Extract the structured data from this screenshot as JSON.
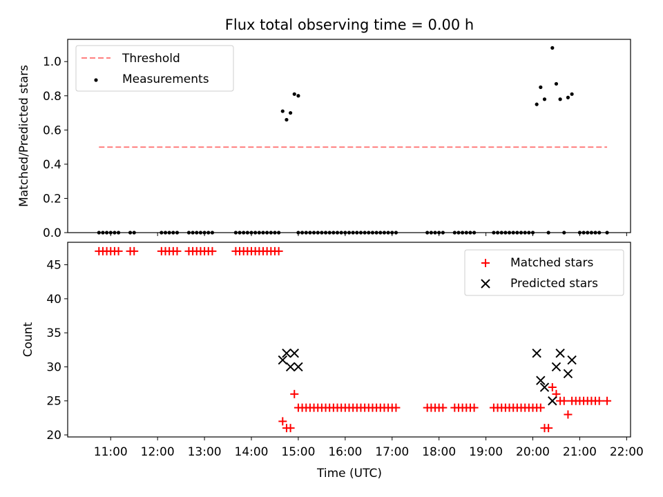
{
  "figure": {
    "title": "Flux total observing time = 0.00 h",
    "xlabel": "Time (UTC)"
  },
  "chart_data": [
    {
      "type": "scatter",
      "title": "Flux total observing time = 0.00 h",
      "ylabel": "Matched/Predicted stars",
      "ylim": [
        0,
        1.13
      ],
      "yticks": [
        0.0,
        0.2,
        0.4,
        0.6,
        0.8,
        1.0
      ],
      "legend": {
        "placement": "top-left",
        "entries": [
          "Threshold",
          "Measurements"
        ]
      },
      "threshold": {
        "name": "Threshold",
        "value": 0.5,
        "x_start": "10:45",
        "x_end": "21:35",
        "color": "#ff7f7f"
      },
      "series": [
        {
          "name": "Measurements",
          "color": "#000000",
          "points": [
            [
              "10:45",
              0
            ],
            [
              "10:50",
              0
            ],
            [
              "10:55",
              0
            ],
            [
              "11:00",
              0
            ],
            [
              "11:05",
              0
            ],
            [
              "11:10",
              0
            ],
            [
              "11:25",
              0
            ],
            [
              "11:30",
              0
            ],
            [
              "12:05",
              0
            ],
            [
              "12:10",
              0
            ],
            [
              "12:15",
              0
            ],
            [
              "12:20",
              0
            ],
            [
              "12:25",
              0
            ],
            [
              "12:40",
              0
            ],
            [
              "12:45",
              0
            ],
            [
              "12:50",
              0
            ],
            [
              "12:55",
              0
            ],
            [
              "13:00",
              0
            ],
            [
              "13:05",
              0
            ],
            [
              "13:10",
              0
            ],
            [
              "13:40",
              0
            ],
            [
              "13:45",
              0
            ],
            [
              "13:50",
              0
            ],
            [
              "13:55",
              0
            ],
            [
              "14:00",
              0
            ],
            [
              "14:05",
              0
            ],
            [
              "14:10",
              0
            ],
            [
              "14:15",
              0
            ],
            [
              "14:20",
              0
            ],
            [
              "14:25",
              0
            ],
            [
              "14:30",
              0
            ],
            [
              "14:35",
              0
            ],
            [
              "14:40",
              0.71
            ],
            [
              "14:45",
              0.66
            ],
            [
              "14:50",
              0.7
            ],
            [
              "14:55",
              0.81
            ],
            [
              "15:00",
              0.8
            ],
            [
              "15:00",
              0
            ],
            [
              "15:05",
              0
            ],
            [
              "15:10",
              0
            ],
            [
              "15:15",
              0
            ],
            [
              "15:20",
              0
            ],
            [
              "15:25",
              0
            ],
            [
              "15:30",
              0
            ],
            [
              "15:35",
              0
            ],
            [
              "15:40",
              0
            ],
            [
              "15:45",
              0
            ],
            [
              "15:50",
              0
            ],
            [
              "15:55",
              0
            ],
            [
              "16:00",
              0
            ],
            [
              "16:05",
              0
            ],
            [
              "16:10",
              0
            ],
            [
              "16:15",
              0
            ],
            [
              "16:20",
              0
            ],
            [
              "16:25",
              0
            ],
            [
              "16:30",
              0
            ],
            [
              "16:35",
              0
            ],
            [
              "16:40",
              0
            ],
            [
              "16:45",
              0
            ],
            [
              "16:50",
              0
            ],
            [
              "16:55",
              0
            ],
            [
              "17:00",
              0
            ],
            [
              "17:05",
              0
            ],
            [
              "17:45",
              0
            ],
            [
              "17:50",
              0
            ],
            [
              "17:55",
              0
            ],
            [
              "18:00",
              0
            ],
            [
              "18:05",
              0
            ],
            [
              "18:20",
              0
            ],
            [
              "18:25",
              0
            ],
            [
              "18:30",
              0
            ],
            [
              "18:35",
              0
            ],
            [
              "18:40",
              0
            ],
            [
              "18:45",
              0
            ],
            [
              "19:10",
              0
            ],
            [
              "19:15",
              0
            ],
            [
              "19:20",
              0
            ],
            [
              "19:25",
              0
            ],
            [
              "19:30",
              0
            ],
            [
              "19:35",
              0
            ],
            [
              "19:40",
              0
            ],
            [
              "19:45",
              0
            ],
            [
              "19:50",
              0
            ],
            [
              "19:55",
              0
            ],
            [
              "20:00",
              0
            ],
            [
              "20:05",
              0.75
            ],
            [
              "20:10",
              0.85
            ],
            [
              "20:15",
              0.78
            ],
            [
              "20:20",
              0
            ],
            [
              "20:25",
              1.08
            ],
            [
              "20:30",
              0.87
            ],
            [
              "20:35",
              0.78
            ],
            [
              "20:40",
              0
            ],
            [
              "20:45",
              0.79
            ],
            [
              "20:50",
              0.81
            ],
            [
              "21:00",
              0
            ],
            [
              "21:05",
              0
            ],
            [
              "21:10",
              0
            ],
            [
              "21:15",
              0
            ],
            [
              "21:20",
              0
            ],
            [
              "21:25",
              0
            ],
            [
              "21:35",
              0
            ]
          ]
        }
      ]
    },
    {
      "type": "scatter",
      "ylabel": "Count",
      "xlabel": "Time (UTC)",
      "ylim": [
        19.7,
        48.3
      ],
      "yticks": [
        20,
        25,
        30,
        35,
        40,
        45
      ],
      "xticks": [
        "11:00",
        "12:00",
        "13:00",
        "14:00",
        "15:00",
        "16:00",
        "17:00",
        "18:00",
        "19:00",
        "20:00",
        "21:00",
        "22:00"
      ],
      "xlim": [
        "10:05",
        "22:05"
      ],
      "legend": {
        "placement": "top-right",
        "entries": [
          "Matched stars",
          "Predicted stars"
        ]
      },
      "series": [
        {
          "name": "Matched stars",
          "marker": "plus",
          "color": "#ff0000",
          "points": [
            [
              "10:45",
              47
            ],
            [
              "10:50",
              47
            ],
            [
              "10:55",
              47
            ],
            [
              "11:00",
              47
            ],
            [
              "11:05",
              47
            ],
            [
              "11:10",
              47
            ],
            [
              "11:25",
              47
            ],
            [
              "11:30",
              47
            ],
            [
              "12:05",
              47
            ],
            [
              "12:10",
              47
            ],
            [
              "12:15",
              47
            ],
            [
              "12:20",
              47
            ],
            [
              "12:25",
              47
            ],
            [
              "12:40",
              47
            ],
            [
              "12:45",
              47
            ],
            [
              "12:50",
              47
            ],
            [
              "12:55",
              47
            ],
            [
              "13:00",
              47
            ],
            [
              "13:05",
              47
            ],
            [
              "13:10",
              47
            ],
            [
              "13:40",
              47
            ],
            [
              "13:45",
              47
            ],
            [
              "13:50",
              47
            ],
            [
              "13:55",
              47
            ],
            [
              "14:00",
              47
            ],
            [
              "14:05",
              47
            ],
            [
              "14:10",
              47
            ],
            [
              "14:15",
              47
            ],
            [
              "14:20",
              47
            ],
            [
              "14:25",
              47
            ],
            [
              "14:30",
              47
            ],
            [
              "14:35",
              47
            ],
            [
              "14:40",
              22
            ],
            [
              "14:45",
              21
            ],
            [
              "14:50",
              21
            ],
            [
              "14:55",
              26
            ],
            [
              "15:00",
              24
            ],
            [
              "15:05",
              24
            ],
            [
              "15:10",
              24
            ],
            [
              "15:15",
              24
            ],
            [
              "15:20",
              24
            ],
            [
              "15:25",
              24
            ],
            [
              "15:30",
              24
            ],
            [
              "15:35",
              24
            ],
            [
              "15:40",
              24
            ],
            [
              "15:45",
              24
            ],
            [
              "15:50",
              24
            ],
            [
              "15:55",
              24
            ],
            [
              "16:00",
              24
            ],
            [
              "16:05",
              24
            ],
            [
              "16:10",
              24
            ],
            [
              "16:15",
              24
            ],
            [
              "16:20",
              24
            ],
            [
              "16:25",
              24
            ],
            [
              "16:30",
              24
            ],
            [
              "16:35",
              24
            ],
            [
              "16:40",
              24
            ],
            [
              "16:45",
              24
            ],
            [
              "16:50",
              24
            ],
            [
              "16:55",
              24
            ],
            [
              "17:00",
              24
            ],
            [
              "17:05",
              24
            ],
            [
              "17:45",
              24
            ],
            [
              "17:50",
              24
            ],
            [
              "17:55",
              24
            ],
            [
              "18:00",
              24
            ],
            [
              "18:05",
              24
            ],
            [
              "18:20",
              24
            ],
            [
              "18:25",
              24
            ],
            [
              "18:30",
              24
            ],
            [
              "18:35",
              24
            ],
            [
              "18:40",
              24
            ],
            [
              "18:45",
              24
            ],
            [
              "19:10",
              24
            ],
            [
              "19:15",
              24
            ],
            [
              "19:20",
              24
            ],
            [
              "19:25",
              24
            ],
            [
              "19:30",
              24
            ],
            [
              "19:35",
              24
            ],
            [
              "19:40",
              24
            ],
            [
              "19:45",
              24
            ],
            [
              "19:50",
              24
            ],
            [
              "19:55",
              24
            ],
            [
              "20:00",
              24
            ],
            [
              "20:05",
              24
            ],
            [
              "20:10",
              24
            ],
            [
              "20:15",
              21
            ],
            [
              "20:20",
              21
            ],
            [
              "20:25",
              27
            ],
            [
              "20:30",
              26
            ],
            [
              "20:35",
              25
            ],
            [
              "20:40",
              25
            ],
            [
              "20:45",
              23
            ],
            [
              "20:50",
              25
            ],
            [
              "20:55",
              25
            ],
            [
              "21:00",
              25
            ],
            [
              "21:05",
              25
            ],
            [
              "21:10",
              25
            ],
            [
              "21:15",
              25
            ],
            [
              "21:20",
              25
            ],
            [
              "21:25",
              25
            ],
            [
              "21:35",
              25
            ]
          ]
        },
        {
          "name": "Predicted stars",
          "marker": "x",
          "color": "#000000",
          "points": [
            [
              "14:40",
              31
            ],
            [
              "14:45",
              32
            ],
            [
              "14:50",
              30
            ],
            [
              "14:55",
              32
            ],
            [
              "15:00",
              30
            ],
            [
              "20:05",
              32
            ],
            [
              "20:10",
              28
            ],
            [
              "20:15",
              27
            ],
            [
              "20:25",
              25
            ],
            [
              "20:30",
              30
            ],
            [
              "20:35",
              32
            ],
            [
              "20:45",
              29
            ],
            [
              "20:50",
              31
            ]
          ]
        }
      ]
    }
  ]
}
